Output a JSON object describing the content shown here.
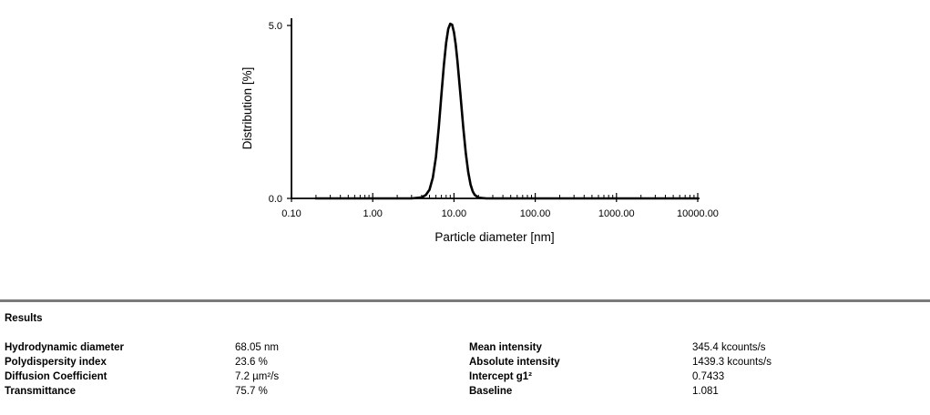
{
  "chart_data": {
    "type": "line",
    "title": "",
    "xlabel": "Particle diameter [nm]",
    "ylabel": "Distribution [%]",
    "x_scale": "log",
    "xlim": [
      0.1,
      10000
    ],
    "ylim": [
      0,
      5.0
    ],
    "x_ticks": [
      "0.10",
      "1.00",
      "10.00",
      "100.00",
      "1000.00",
      "10000.00"
    ],
    "y_ticks": [
      "0.0",
      "5.0"
    ],
    "grid": "off",
    "legend": "none",
    "line_color": "#000000",
    "series": [
      {
        "name": "Distribution",
        "x": [
          0.2,
          0.3,
          0.5,
          1,
          2,
          3,
          4,
          4.5,
          5,
          5.5,
          6,
          6.5,
          7,
          7.5,
          8,
          8.5,
          9,
          9.5,
          10,
          10.5,
          11,
          12,
          13,
          14,
          15,
          16,
          17,
          18,
          20,
          22,
          25,
          30,
          50,
          100,
          500,
          1000,
          5000,
          10000
        ],
        "y": [
          0,
          0,
          0,
          0,
          0,
          0,
          0.03,
          0.1,
          0.25,
          0.6,
          1.2,
          2.05,
          3.0,
          3.85,
          4.5,
          4.9,
          5.05,
          5.02,
          4.8,
          4.45,
          4.0,
          3.0,
          2.05,
          1.3,
          0.75,
          0.4,
          0.2,
          0.1,
          0.02,
          0.01,
          0,
          0,
          0,
          0,
          0,
          0,
          0,
          0
        ]
      }
    ]
  },
  "results": {
    "heading": "Results",
    "left": [
      {
        "label": "Hydrodynamic diameter",
        "value": "68.05 nm"
      },
      {
        "label": "Polydispersity index",
        "value": "23.6 %"
      },
      {
        "label": "Diffusion Coefficient",
        "value": "7.2 µm²/s"
      },
      {
        "label": "Transmittance",
        "value": "75.7 %"
      }
    ],
    "right": [
      {
        "label": "Mean intensity",
        "value": "345.4 kcounts/s"
      },
      {
        "label": "Absolute intensity",
        "value": "1439.3 kcounts/s"
      },
      {
        "label": "Intercept g1²",
        "value": "0.7433"
      },
      {
        "label": "Baseline",
        "value": "1.081"
      }
    ]
  }
}
